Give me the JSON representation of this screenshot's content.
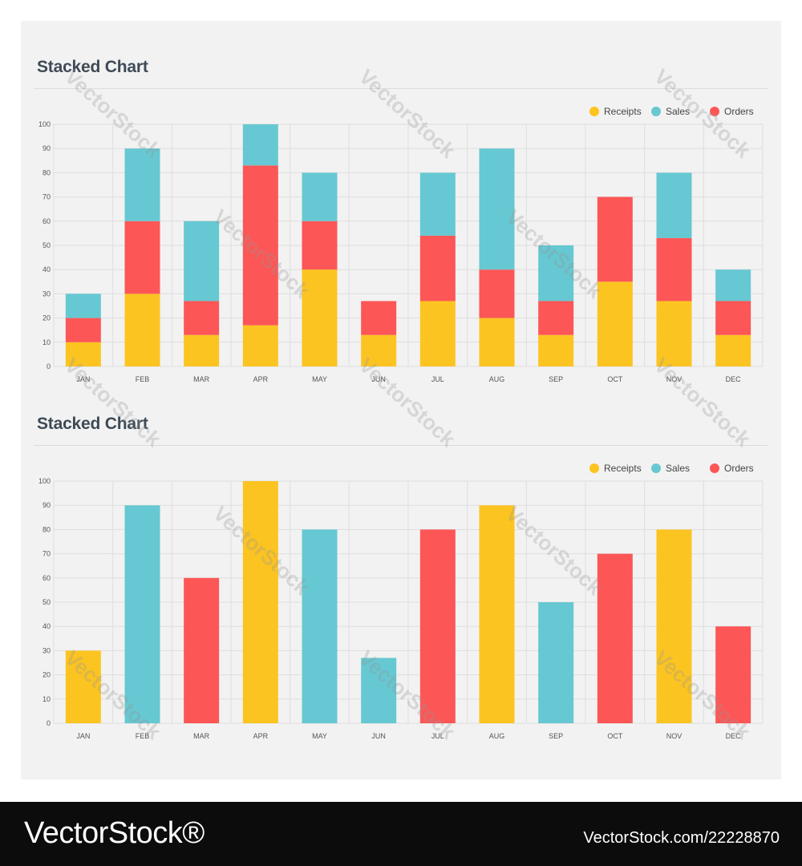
{
  "colors": {
    "receipts": "#fcc421",
    "sales": "#66c8d2",
    "orders": "#fd5656",
    "grid": "#dedede",
    "axis_text": "#555555"
  },
  "chart_data": [
    {
      "type": "bar",
      "stacked": true,
      "title": "Stacked Chart",
      "xlabel": "",
      "ylabel": "",
      "ylim": [
        0,
        100
      ],
      "yticks": [
        0,
        10,
        20,
        30,
        40,
        50,
        60,
        70,
        80,
        90,
        100
      ],
      "grid": true,
      "legend_position": "top-right",
      "categories": [
        "JAN",
        "FEB",
        "MAR",
        "APR",
        "MAY",
        "JUN",
        "JUL",
        "AUG",
        "SEP",
        "OCT",
        "NOV",
        "DEC"
      ],
      "series": [
        {
          "name": "Receipts",
          "color": "#fcc421",
          "values": [
            10,
            30,
            13,
            17,
            40,
            13,
            27,
            20,
            13,
            35,
            27,
            13
          ]
        },
        {
          "name": "Orders",
          "color": "#fd5656",
          "values": [
            10,
            30,
            14,
            66,
            20,
            14,
            27,
            20,
            14,
            35,
            26,
            14
          ]
        },
        {
          "name": "Sales",
          "color": "#66c8d2",
          "values": [
            10,
            30,
            33,
            17,
            20,
            0,
            26,
            50,
            23,
            0,
            27,
            13
          ]
        }
      ],
      "legend": [
        {
          "name": "Receipts",
          "color": "#fcc421"
        },
        {
          "name": "Sales",
          "color": "#66c8d2"
        },
        {
          "name": "Orders",
          "color": "#fd5656"
        }
      ]
    },
    {
      "type": "bar",
      "stacked": false,
      "title": "Stacked Chart",
      "xlabel": "",
      "ylabel": "",
      "ylim": [
        0,
        100
      ],
      "yticks": [
        0,
        10,
        20,
        30,
        40,
        50,
        60,
        70,
        80,
        90,
        100
      ],
      "grid": true,
      "legend_position": "top-right",
      "categories": [
        "JAN",
        "FEB",
        "MAR",
        "APR",
        "MAY",
        "JUN",
        "JUL",
        "AUG",
        "SEP",
        "OCT",
        "NOV",
        "DEC"
      ],
      "bars": [
        {
          "category": "JAN",
          "value": 30,
          "series": "Receipts"
        },
        {
          "category": "FEB",
          "value": 90,
          "series": "Sales"
        },
        {
          "category": "MAR",
          "value": 60,
          "series": "Orders"
        },
        {
          "category": "APR",
          "value": 100,
          "series": "Receipts"
        },
        {
          "category": "MAY",
          "value": 80,
          "series": "Sales"
        },
        {
          "category": "JUN",
          "value": 27,
          "series": "Sales"
        },
        {
          "category": "JUL",
          "value": 80,
          "series": "Orders"
        },
        {
          "category": "AUG",
          "value": 90,
          "series": "Receipts"
        },
        {
          "category": "SEP",
          "value": 50,
          "series": "Sales"
        },
        {
          "category": "OCT",
          "value": 70,
          "series": "Orders"
        },
        {
          "category": "NOV",
          "value": 80,
          "series": "Receipts"
        },
        {
          "category": "DEC",
          "value": 40,
          "series": "Orders"
        }
      ],
      "legend": [
        {
          "name": "Receipts",
          "color": "#fcc421"
        },
        {
          "name": "Sales",
          "color": "#66c8d2"
        },
        {
          "name": "Orders",
          "color": "#fd5656"
        }
      ]
    }
  ],
  "watermark": "VectorStock",
  "banner": {
    "brand": "VectorStock®",
    "image_id": "VectorStock.com/22228870"
  }
}
